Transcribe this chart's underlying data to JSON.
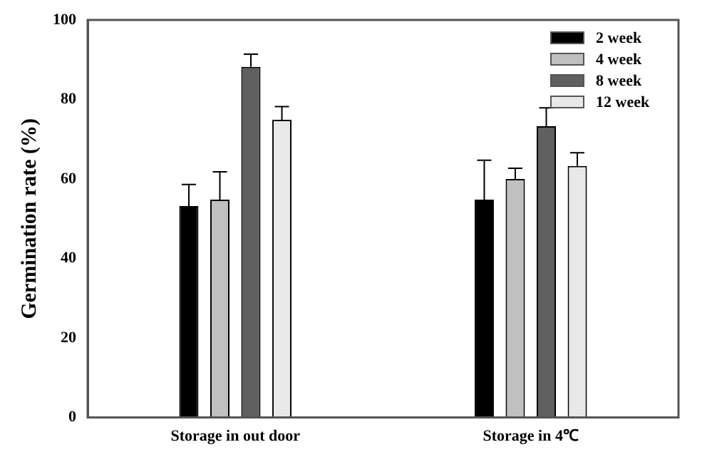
{
  "chart_data": {
    "type": "bar",
    "ylabel": "Germination rate (%)",
    "categories": [
      "Storage in out door",
      "Storage in 4℃"
    ],
    "series": [
      {
        "name": "2 week",
        "color": "#000000",
        "values": [
          53.2,
          54.8
        ],
        "errors": [
          [
            53.2,
            58.6
          ],
          [
            54.8,
            64.7
          ]
        ]
      },
      {
        "name": "4 week",
        "color": "#c0c0c0",
        "values": [
          54.8,
          60.0
        ],
        "errors": [
          [
            54.8,
            61.8
          ],
          [
            60.0,
            62.7
          ]
        ]
      },
      {
        "name": "8 week",
        "color": "#606060",
        "values": [
          88.2,
          73.3
        ],
        "errors": [
          [
            88.2,
            91.4
          ],
          [
            73.3,
            77.9
          ]
        ]
      },
      {
        "name": "12 week",
        "color": "#e8e8e8",
        "values": [
          74.9,
          63.3
        ],
        "errors": [
          [
            74.9,
            78.2
          ],
          [
            63.3,
            66.6
          ]
        ]
      }
    ],
    "ylim": [
      0,
      100
    ],
    "yticks": [
      0,
      20,
      40,
      60,
      80,
      100
    ],
    "grid": false,
    "legend": "top right"
  }
}
